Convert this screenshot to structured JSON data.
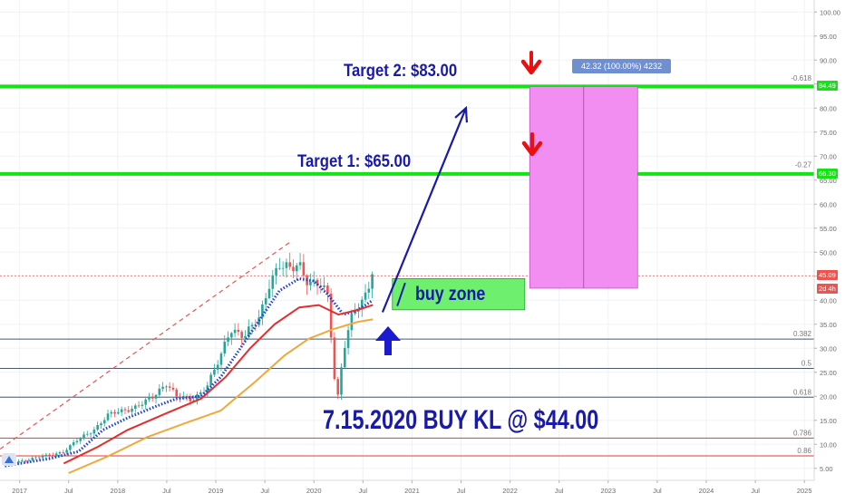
{
  "chart_data": {
    "type": "line",
    "ticker_note": "",
    "y_axis": {
      "ticks": [
        "100.00",
        "95.00",
        "90.00",
        "85.00",
        "80.00",
        "75.00",
        "70.00",
        "65.00",
        "60.00",
        "55.00",
        "50.00",
        "45.00",
        "40.00",
        "35.00",
        "30.00",
        "25.00",
        "20.00",
        "15.00",
        "10.00",
        "5.00"
      ],
      "ylim": [
        2.5,
        102.5
      ]
    },
    "x_axis": {
      "ticks": [
        "2017",
        "Jul",
        "2018",
        "Jul",
        "2019",
        "Jul",
        "2020",
        "Jul",
        "2021",
        "Jul",
        "2022",
        "Jul",
        "2023",
        "Jul",
        "2024",
        "Jul",
        "2025"
      ],
      "xlim": [
        2016.8,
        2025.1
      ]
    },
    "price_series": {
      "name": "",
      "color": "#26a69a",
      "down_color": "#ef5350",
      "points": [
        [
          2016.85,
          6
        ],
        [
          2017.0,
          6.5
        ],
        [
          2017.25,
          7.5
        ],
        [
          2017.45,
          8.5
        ],
        [
          2017.6,
          11
        ],
        [
          2017.75,
          13
        ],
        [
          2017.9,
          16
        ],
        [
          2018.05,
          17
        ],
        [
          2018.2,
          18
        ],
        [
          2018.35,
          19.5
        ],
        [
          2018.5,
          23
        ],
        [
          2018.6,
          20
        ],
        [
          2018.75,
          19
        ],
        [
          2018.9,
          22
        ],
        [
          2019.05,
          28
        ],
        [
          2019.15,
          34
        ],
        [
          2019.3,
          33
        ],
        [
          2019.45,
          36
        ],
        [
          2019.55,
          44
        ],
        [
          2019.65,
          48
        ],
        [
          2019.75,
          46
        ],
        [
          2019.85,
          47
        ],
        [
          2019.95,
          44
        ],
        [
          2020.05,
          44
        ],
        [
          2020.15,
          40
        ],
        [
          2020.2,
          25
        ],
        [
          2020.24,
          19
        ],
        [
          2020.3,
          30
        ],
        [
          2020.4,
          38
        ],
        [
          2020.5,
          39
        ],
        [
          2020.55,
          42
        ],
        [
          2020.6,
          46
        ]
      ]
    },
    "moving_averages": [
      {
        "name": "",
        "color": "#1f3fd6",
        "style": "dotted",
        "points": [
          [
            2016.85,
            5.5
          ],
          [
            2017.3,
            7
          ],
          [
            2017.6,
            8.5
          ],
          [
            2017.85,
            13
          ],
          [
            2018.1,
            15.5
          ],
          [
            2018.4,
            18
          ],
          [
            2018.6,
            19.5
          ],
          [
            2018.85,
            20
          ],
          [
            2019.05,
            24
          ],
          [
            2019.25,
            30
          ],
          [
            2019.45,
            36
          ],
          [
            2019.65,
            42
          ],
          [
            2019.85,
            44.5
          ],
          [
            2020.0,
            44
          ],
          [
            2020.15,
            41
          ],
          [
            2020.3,
            37
          ],
          [
            2020.45,
            38
          ],
          [
            2020.6,
            40
          ]
        ]
      },
      {
        "name": "",
        "color": "#e52d2d",
        "style": "solid",
        "points": [
          [
            2017.45,
            6
          ],
          [
            2017.8,
            9.5
          ],
          [
            2018.1,
            13
          ],
          [
            2018.5,
            16.5
          ],
          [
            2018.85,
            19.5
          ],
          [
            2019.1,
            24
          ],
          [
            2019.35,
            30
          ],
          [
            2019.6,
            35
          ],
          [
            2019.85,
            38.5
          ],
          [
            2020.05,
            39
          ],
          [
            2020.25,
            37
          ],
          [
            2020.45,
            38
          ],
          [
            2020.6,
            39
          ]
        ]
      },
      {
        "name": "",
        "color": "#f0a93a",
        "style": "solid",
        "points": [
          [
            2017.5,
            4
          ],
          [
            2017.9,
            7.5
          ],
          [
            2018.3,
            11.5
          ],
          [
            2018.7,
            14.5
          ],
          [
            2019.05,
            17
          ],
          [
            2019.4,
            23
          ],
          [
            2019.7,
            28.5
          ],
          [
            2019.95,
            32
          ],
          [
            2020.2,
            34
          ],
          [
            2020.45,
            35.5
          ],
          [
            2020.6,
            36
          ]
        ]
      }
    ],
    "horizontal_lines": [
      {
        "label": "",
        "value": 84.5,
        "color": "#14e414",
        "width": 4
      },
      {
        "label": "",
        "value": 66.3,
        "color": "#14e414",
        "width": 4
      },
      {
        "label": "",
        "value": 45.09,
        "color": "#ef5350",
        "width": 0.8,
        "dashed": true
      }
    ],
    "fib_levels": [
      {
        "label": "0.382",
        "value": 31.9
      },
      {
        "label": "0.5",
        "value": 25.8
      },
      {
        "label": "0.618",
        "value": 19.8
      },
      {
        "label": "0.786",
        "value": 11.3,
        "color": "#e53935"
      },
      {
        "label": "0.86",
        "value": 7.6,
        "color": "#e53935"
      }
    ],
    "upper_fib_labels": [
      {
        "label": "-0.618",
        "value": 85.5
      },
      {
        "label": "-0.27",
        "value": 67.5
      }
    ],
    "dashed_trendline": {
      "color": "#ef5350",
      "from": [
        2016.8,
        9
      ],
      "to": [
        2019.75,
        52
      ]
    },
    "projection_arrow": {
      "color": "#1a1aa8",
      "from": [
        2020.7,
        37.5
      ],
      "to": [
        2021.55,
        80
      ]
    },
    "buy_zone": {
      "label": "buy zone",
      "x": [
        2020.8,
        2022.15
      ],
      "y": [
        38,
        44.5
      ],
      "color": "#6ef06e"
    },
    "measure_box": {
      "label": "42.32 (100.00%) 4232",
      "x": [
        2022.2,
        2023.3
      ],
      "y": [
        42.5,
        84.5
      ],
      "color": "#f28df2"
    },
    "annotations": {
      "target2": "Target 2: $83.00",
      "target1": "Target 1: $65.00",
      "buy_note": "7.15.2020 BUY KL @ $44.00"
    },
    "price_tags": [
      {
        "label": "45.09",
        "value": 45.09,
        "color": "#ef5350"
      },
      {
        "label": "2d 4h",
        "value": 42.3,
        "color": "#ef5350"
      },
      {
        "label": "84.49",
        "value": 84.5,
        "color": "#14e414"
      },
      {
        "label": "66.30",
        "value": 66.3,
        "color": "#14e414"
      }
    ],
    "grid": true
  }
}
